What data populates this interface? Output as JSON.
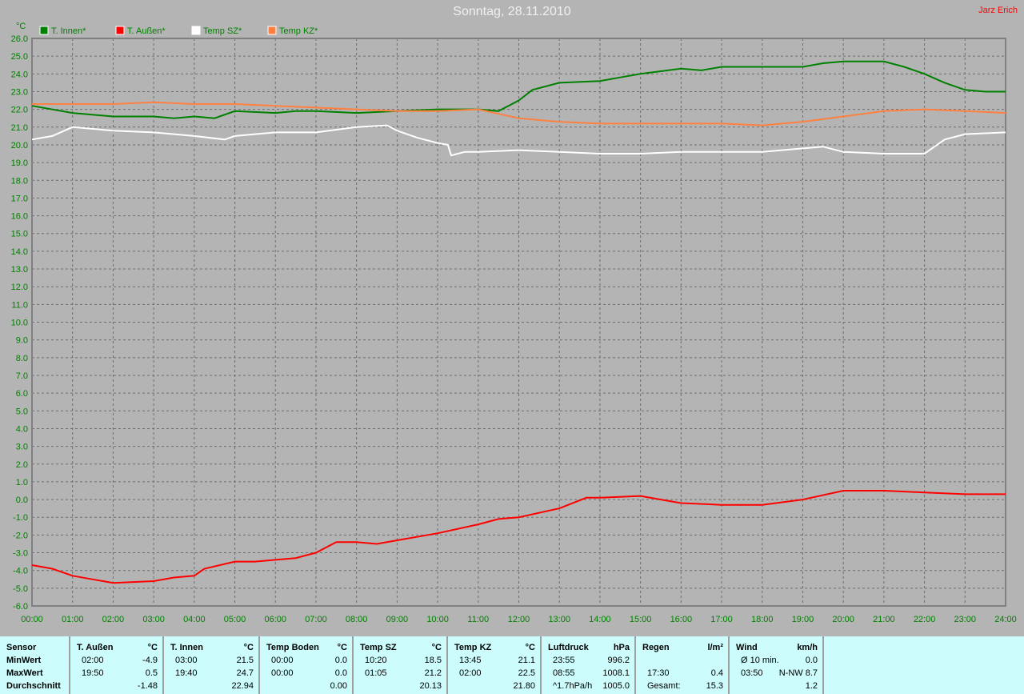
{
  "title": "Sonntag, 28.11.2010",
  "author": "Jarz Erich",
  "chart_data": {
    "type": "line",
    "ylabel": "°C",
    "ylim": [
      -6,
      26
    ],
    "ystep": 1,
    "xlim": [
      "00:00",
      "24:00"
    ],
    "xticks": [
      "00:00",
      "01:00",
      "02:00",
      "03:00",
      "04:00",
      "05:00",
      "06:00",
      "07:00",
      "08:00",
      "09:00",
      "10:00",
      "11:00",
      "12:00",
      "13:00",
      "14:00",
      "15:00",
      "16:00",
      "17:00",
      "18:00",
      "19:00",
      "20:00",
      "21:00",
      "22:00",
      "23:00",
      "24:00"
    ],
    "grid": true,
    "legend_placement": "top-left",
    "series": [
      {
        "name": "T. Innen*",
        "color": "#008000",
        "points": [
          [
            "00:00",
            22.2
          ],
          [
            "01:00",
            21.8
          ],
          [
            "02:00",
            21.6
          ],
          [
            "03:00",
            21.6
          ],
          [
            "03:30",
            21.5
          ],
          [
            "04:00",
            21.6
          ],
          [
            "04:30",
            21.5
          ],
          [
            "05:00",
            21.9
          ],
          [
            "06:00",
            21.8
          ],
          [
            "06:30",
            21.9
          ],
          [
            "07:00",
            21.9
          ],
          [
            "08:00",
            21.8
          ],
          [
            "09:00",
            21.9
          ],
          [
            "10:00",
            22.0
          ],
          [
            "11:00",
            22.0
          ],
          [
            "11:30",
            21.9
          ],
          [
            "12:00",
            22.5
          ],
          [
            "12:20",
            23.1
          ],
          [
            "13:00",
            23.5
          ],
          [
            "14:00",
            23.6
          ],
          [
            "14:30",
            23.8
          ],
          [
            "15:00",
            24.0
          ],
          [
            "16:00",
            24.3
          ],
          [
            "16:30",
            24.2
          ],
          [
            "17:00",
            24.4
          ],
          [
            "18:00",
            24.4
          ],
          [
            "19:00",
            24.4
          ],
          [
            "19:30",
            24.6
          ],
          [
            "20:00",
            24.7
          ],
          [
            "21:00",
            24.7
          ],
          [
            "21:30",
            24.4
          ],
          [
            "22:00",
            24.0
          ],
          [
            "22:30",
            23.5
          ],
          [
            "23:00",
            23.1
          ],
          [
            "23:30",
            23.0
          ],
          [
            "24:00",
            23.0
          ]
        ]
      },
      {
        "name": "T. Außen*",
        "color": "#ff0000",
        "points": [
          [
            "00:00",
            -3.7
          ],
          [
            "00:30",
            -3.9
          ],
          [
            "01:00",
            -4.3
          ],
          [
            "01:30",
            -4.5
          ],
          [
            "02:00",
            -4.7
          ],
          [
            "03:00",
            -4.6
          ],
          [
            "03:30",
            -4.4
          ],
          [
            "04:00",
            -4.3
          ],
          [
            "04:15",
            -3.9
          ],
          [
            "05:00",
            -3.5
          ],
          [
            "05:30",
            -3.5
          ],
          [
            "06:00",
            -3.4
          ],
          [
            "06:30",
            -3.3
          ],
          [
            "07:00",
            -3.0
          ],
          [
            "07:30",
            -2.4
          ],
          [
            "08:00",
            -2.4
          ],
          [
            "08:30",
            -2.5
          ],
          [
            "09:00",
            -2.3
          ],
          [
            "10:00",
            -1.9
          ],
          [
            "11:00",
            -1.4
          ],
          [
            "11:30",
            -1.1
          ],
          [
            "12:00",
            -1.0
          ],
          [
            "13:00",
            -0.5
          ],
          [
            "13:40",
            0.1
          ],
          [
            "14:00",
            0.1
          ],
          [
            "15:00",
            0.2
          ],
          [
            "15:30",
            0.0
          ],
          [
            "16:00",
            -0.2
          ],
          [
            "17:00",
            -0.3
          ],
          [
            "18:00",
            -0.3
          ],
          [
            "19:00",
            0.0
          ],
          [
            "20:00",
            0.5
          ],
          [
            "21:00",
            0.5
          ],
          [
            "22:00",
            0.4
          ],
          [
            "23:00",
            0.3
          ],
          [
            "24:00",
            0.3
          ]
        ]
      },
      {
        "name": "Temp SZ*",
        "color": "#ffffff",
        "points": [
          [
            "00:00",
            20.3
          ],
          [
            "00:30",
            20.5
          ],
          [
            "01:00",
            21.0
          ],
          [
            "02:00",
            20.8
          ],
          [
            "03:00",
            20.7
          ],
          [
            "04:00",
            20.5
          ],
          [
            "04:45",
            20.3
          ],
          [
            "05:00",
            20.5
          ],
          [
            "06:00",
            20.7
          ],
          [
            "07:00",
            20.7
          ],
          [
            "08:00",
            21.0
          ],
          [
            "08:45",
            21.1
          ],
          [
            "09:00",
            20.8
          ],
          [
            "09:30",
            20.4
          ],
          [
            "10:00",
            20.1
          ],
          [
            "10:15",
            20.0
          ],
          [
            "10:20",
            19.4
          ],
          [
            "10:40",
            19.6
          ],
          [
            "11:00",
            19.6
          ],
          [
            "12:00",
            19.7
          ],
          [
            "13:00",
            19.6
          ],
          [
            "14:00",
            19.5
          ],
          [
            "15:00",
            19.5
          ],
          [
            "16:00",
            19.6
          ],
          [
            "17:00",
            19.6
          ],
          [
            "18:00",
            19.6
          ],
          [
            "19:00",
            19.8
          ],
          [
            "19:30",
            19.9
          ],
          [
            "20:00",
            19.6
          ],
          [
            "21:00",
            19.5
          ],
          [
            "22:00",
            19.5
          ],
          [
            "22:30",
            20.3
          ],
          [
            "23:00",
            20.6
          ],
          [
            "24:00",
            20.7
          ]
        ]
      },
      {
        "name": "Temp KZ*",
        "color": "#ff8040",
        "points": [
          [
            "00:00",
            22.3
          ],
          [
            "01:00",
            22.3
          ],
          [
            "02:00",
            22.3
          ],
          [
            "03:00",
            22.4
          ],
          [
            "04:00",
            22.3
          ],
          [
            "05:00",
            22.3
          ],
          [
            "06:00",
            22.2
          ],
          [
            "07:00",
            22.1
          ],
          [
            "08:00",
            22.0
          ],
          [
            "09:00",
            21.9
          ],
          [
            "10:00",
            21.9
          ],
          [
            "11:00",
            22.0
          ],
          [
            "12:00",
            21.5
          ],
          [
            "13:00",
            21.3
          ],
          [
            "14:00",
            21.2
          ],
          [
            "15:00",
            21.2
          ],
          [
            "16:00",
            21.2
          ],
          [
            "17:00",
            21.2
          ],
          [
            "18:00",
            21.1
          ],
          [
            "19:00",
            21.3
          ],
          [
            "20:00",
            21.6
          ],
          [
            "21:00",
            21.9
          ],
          [
            "22:00",
            22.0
          ],
          [
            "23:00",
            21.9
          ],
          [
            "24:00",
            21.8
          ]
        ]
      }
    ]
  },
  "stats": {
    "sensor": {
      "header": "Sensor",
      "rows": [
        "MinWert",
        "MaxWert",
        "Durchschnitt"
      ]
    },
    "columns": [
      {
        "name": "T. Außen",
        "unit": "°C",
        "rows": [
          [
            "02:00",
            "-4.9"
          ],
          [
            "19:50",
            "0.5"
          ],
          [
            "",
            "-1.48"
          ]
        ]
      },
      {
        "name": "T. Innen",
        "unit": "°C",
        "rows": [
          [
            "03:00",
            "21.5"
          ],
          [
            "19:40",
            "24.7"
          ],
          [
            "",
            "22.94"
          ]
        ]
      },
      {
        "name": "Temp Boden",
        "unit": "°C",
        "rows": [
          [
            "00:00",
            "0.0"
          ],
          [
            "00:00",
            "0.0"
          ],
          [
            "",
            "0.00"
          ]
        ]
      },
      {
        "name": "Temp SZ",
        "unit": "°C",
        "rows": [
          [
            "10:20",
            "18.5"
          ],
          [
            "01:05",
            "21.2"
          ],
          [
            "",
            "20.13"
          ]
        ]
      },
      {
        "name": "Temp KZ",
        "unit": "°C",
        "rows": [
          [
            "13:45",
            "21.1"
          ],
          [
            "02:00",
            "22.5"
          ],
          [
            "",
            "21.80"
          ]
        ]
      },
      {
        "name": "Luftdruck",
        "unit": "hPa",
        "rows": [
          [
            "23:55",
            "996.2"
          ],
          [
            "08:55",
            "1008.1"
          ],
          [
            "^1.7hPa/h",
            "1005.0"
          ]
        ]
      },
      {
        "name": "Regen",
        "unit": "l/m²",
        "rows": [
          [
            "",
            ""
          ],
          [
            "17:30",
            "0.4"
          ],
          [
            "Gesamt:",
            "15.3"
          ]
        ]
      },
      {
        "name": "Wind",
        "unit": "km/h",
        "rows": [
          [
            "Ø 10 min.",
            "0.0"
          ],
          [
            "03:50",
            "N-NW 8.7"
          ],
          [
            "",
            "1.2"
          ]
        ]
      }
    ]
  }
}
